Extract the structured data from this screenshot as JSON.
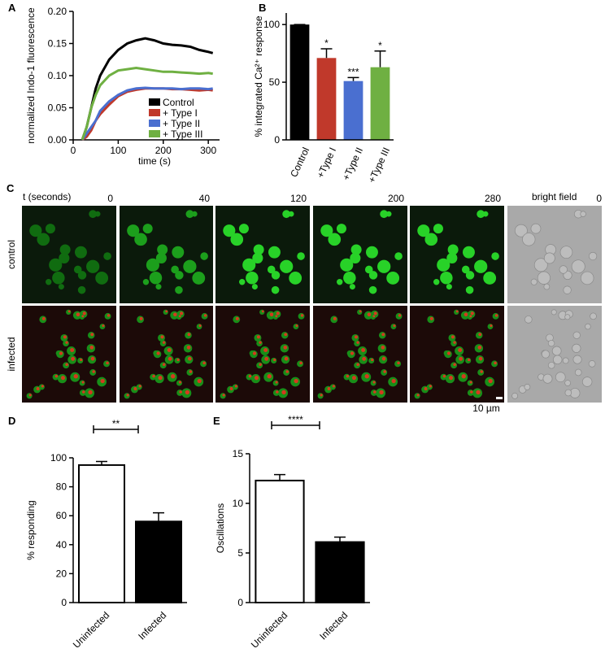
{
  "chart_data": [
    {
      "type": "line",
      "panel": "A",
      "xlabel": "time (s)",
      "ylabel": "normalized Indo-1 fluorescence",
      "x": [
        20,
        30,
        40,
        50,
        60,
        80,
        100,
        120,
        140,
        160,
        180,
        200,
        220,
        240,
        260,
        280,
        300,
        310
      ],
      "series": [
        {
          "name": "Control",
          "color": "#000000",
          "values": [
            0,
            0.02,
            0.05,
            0.08,
            0.1,
            0.125,
            0.14,
            0.15,
            0.155,
            0.158,
            0.155,
            0.15,
            0.148,
            0.147,
            0.145,
            0.14,
            0.137,
            0.135
          ]
        },
        {
          "name": "+ Type I",
          "color": "#c0392b",
          "values": [
            0,
            0.005,
            0.015,
            0.03,
            0.04,
            0.055,
            0.068,
            0.075,
            0.078,
            0.08,
            0.08,
            0.08,
            0.079,
            0.079,
            0.078,
            0.077,
            0.078,
            0.077
          ]
        },
        {
          "name": "+ Type II",
          "color": "#4a6fd0",
          "values": [
            0,
            0.01,
            0.02,
            0.03,
            0.045,
            0.06,
            0.07,
            0.077,
            0.08,
            0.081,
            0.08,
            0.08,
            0.08,
            0.079,
            0.08,
            0.08,
            0.079,
            0.08
          ]
        },
        {
          "name": "+ Type III",
          "color": "#6fb042",
          "values": [
            0,
            0.02,
            0.05,
            0.07,
            0.085,
            0.1,
            0.108,
            0.11,
            0.112,
            0.11,
            0.108,
            0.106,
            0.106,
            0.105,
            0.104,
            0.103,
            0.104,
            0.103
          ]
        }
      ],
      "xlim": [
        0,
        325
      ],
      "xticks": [
        0,
        100,
        200,
        300
      ],
      "ylim": [
        0,
        0.2
      ],
      "yticks": [
        {
          "value": 0,
          "label": "0.00"
        },
        {
          "value": 0.05,
          "label": "0.05"
        },
        {
          "value": 0.1,
          "label": "0.10"
        },
        {
          "value": 0.15,
          "label": "0.15"
        },
        {
          "value": 0.2,
          "label": "0.20"
        }
      ]
    },
    {
      "type": "bar",
      "panel": "B",
      "ylabel": "% integrated Ca²⁺ response",
      "categories": [
        "Control",
        "+Type I",
        "+Type II",
        "+Type III"
      ],
      "values": [
        100,
        71,
        51,
        63
      ],
      "errors": [
        0,
        8,
        3,
        14
      ],
      "annotations": [
        null,
        "*",
        "***",
        "*"
      ],
      "colors": [
        "#000000",
        "#c0392b",
        "#4a6fd0",
        "#6fb042"
      ],
      "ylim": [
        0,
        110
      ],
      "yticks": [
        0,
        50,
        100
      ]
    },
    {
      "type": "bar",
      "panel": "D",
      "ylabel": "% responding",
      "categories": [
        "Uninfected",
        "Infected"
      ],
      "values": [
        95,
        56
      ],
      "errors": [
        2.5,
        6
      ],
      "significance": "**",
      "colors": [
        "#ffffff",
        "#000000"
      ],
      "ylim": [
        0,
        100
      ],
      "yticks": [
        0,
        20,
        40,
        60,
        80,
        100
      ]
    },
    {
      "type": "bar",
      "panel": "E",
      "ylabel": "Oscillations",
      "categories": [
        "Uninfected",
        "Infected"
      ],
      "values": [
        12.3,
        6.1
      ],
      "errors": [
        0.6,
        0.5
      ],
      "significance": "****",
      "colors": [
        "#ffffff",
        "#000000"
      ],
      "ylim": [
        0,
        15
      ],
      "yticks": [
        0,
        5,
        10,
        15
      ]
    }
  ],
  "image_panel": {
    "panel": "C",
    "time_label": "t (seconds)",
    "times": [
      "0",
      "40",
      "120",
      "200",
      "280"
    ],
    "bright_field": "bright field",
    "bright_field_time": "0",
    "rows": [
      "control",
      "infected"
    ],
    "scale_bar": "10 µm"
  }
}
